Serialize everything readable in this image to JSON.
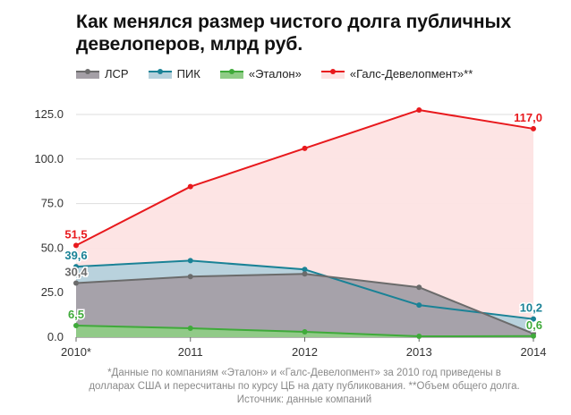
{
  "chart_data": {
    "type": "area",
    "title": "Как менялся размер чистого долга публичных девелоперов, млрд руб.",
    "xlabel": "",
    "ylabel": "",
    "categories": [
      "2010*",
      "2011",
      "2012",
      "2013",
      "2014"
    ],
    "yticks": [
      "0.0",
      "25.0",
      "50.0",
      "75.0",
      "100.0",
      "125.0"
    ],
    "ylim": [
      0,
      135
    ],
    "grid": true,
    "legend_position": "top",
    "series": [
      {
        "name": "«Галс-Девелопмент»**",
        "color": "#e8191d",
        "fill": "#fde3e3",
        "values": [
          51.5,
          84.5,
          106,
          127.5,
          117.0
        ],
        "labels": [
          {
            "index": 0,
            "text": "51,5"
          },
          {
            "index": 4,
            "text": "117,0"
          }
        ]
      },
      {
        "name": "ПИК",
        "color": "#1a8296",
        "fill": "#b5d1dc",
        "values": [
          39.6,
          43,
          38,
          18,
          10.2
        ],
        "labels": [
          {
            "index": 0,
            "text": "39,6"
          },
          {
            "index": 4,
            "text": "10,2"
          }
        ]
      },
      {
        "name": "ЛСР",
        "color": "#6b6b6b",
        "fill": "#a49fa6",
        "values": [
          30.4,
          34,
          35.5,
          28,
          2
        ],
        "labels": [
          {
            "index": 0,
            "text": "30,4"
          }
        ]
      },
      {
        "name": "«Эталон»",
        "color": "#3faa3a",
        "fill": "#8fcc86",
        "values": [
          6.5,
          5,
          3,
          0.5,
          0.6
        ],
        "labels": [
          {
            "index": 0,
            "text": "6,5"
          },
          {
            "index": 4,
            "text": "0,6"
          }
        ]
      }
    ],
    "legend_order": [
      2,
      1,
      3,
      0
    ]
  },
  "footnote": {
    "line1": "*Данные по компаниям «Эталон» и «Галс-Девелопмент» за 2010 год приведены в",
    "line2": "долларах США и пересчитаны по курсу ЦБ на дату публикования. **Объем общего долга.",
    "line3": "Источник: данные компаний"
  }
}
